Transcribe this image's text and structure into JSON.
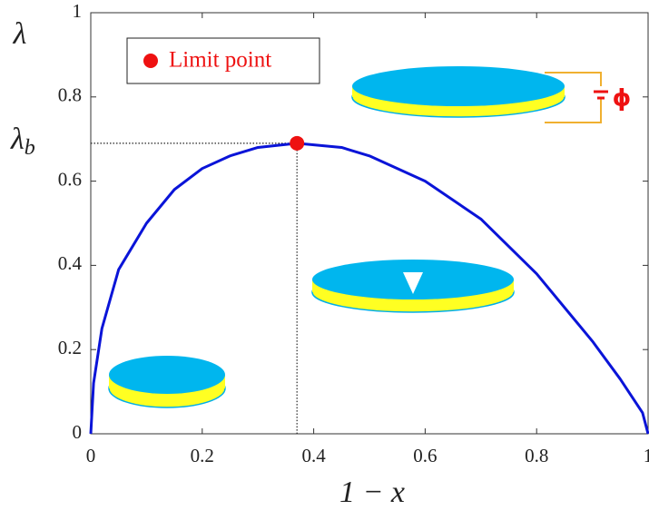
{
  "chart_data": {
    "type": "line",
    "xlabel": "1 − x",
    "ylabel": "λ",
    "y_annotation": {
      "symbol": "λ",
      "subscript": "b"
    },
    "voltage_label": "ϕ",
    "x": [
      0,
      0.005,
      0.02,
      0.05,
      0.1,
      0.15,
      0.2,
      0.25,
      0.3,
      0.37,
      0.45,
      0.5,
      0.6,
      0.7,
      0.8,
      0.9,
      0.95,
      0.99,
      1
    ],
    "series": [
      {
        "color": "#0a14d8",
        "values": [
          0,
          0.12,
          0.25,
          0.39,
          0.5,
          0.58,
          0.63,
          0.66,
          0.68,
          0.69,
          0.68,
          0.66,
          0.6,
          0.51,
          0.38,
          0.22,
          0.13,
          0.05,
          0
        ]
      }
    ],
    "limit_point": {
      "name": "Limit point",
      "x": 0.37,
      "y": 0.69,
      "color": "#ee1111"
    },
    "xlim": [
      0,
      1
    ],
    "ylim": [
      0,
      1
    ],
    "xticks": [
      0,
      0.2,
      0.4,
      0.6,
      0.8,
      1
    ],
    "yticks": [
      0,
      0.2,
      0.4,
      0.6,
      0.8,
      1
    ]
  }
}
